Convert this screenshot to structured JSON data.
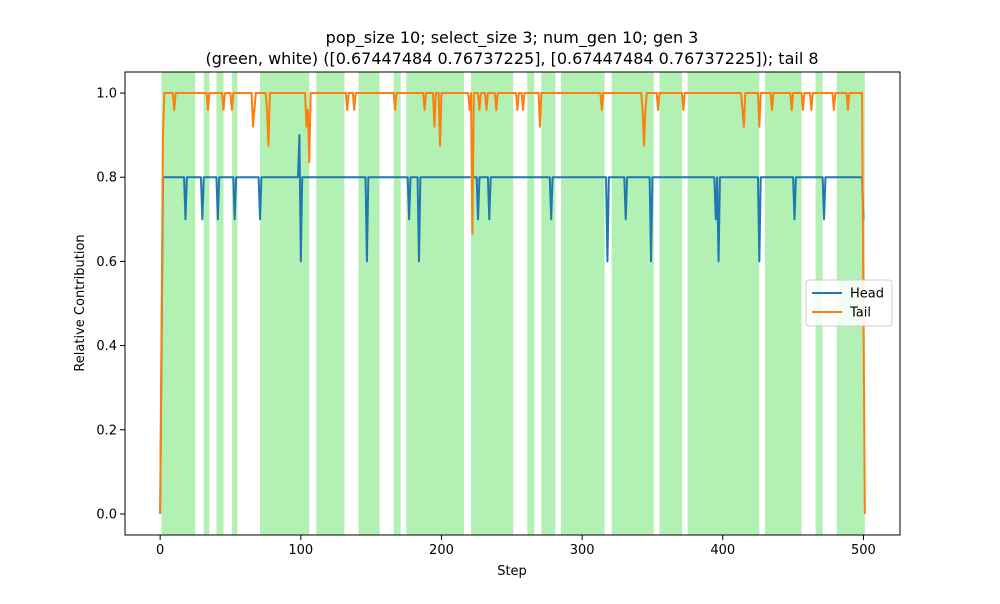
{
  "chart_data": {
    "type": "line",
    "title_line1": "pop_size 10; select_size 3; num_gen 10; gen 3",
    "title_line2": "(green, white) ([0.67447484 0.76737225], [0.67447484 0.76737225]); tail 8",
    "xlabel": "Step",
    "ylabel": "Relative Contribution",
    "xlim": [
      -25,
      526
    ],
    "ylim": [
      -0.05,
      1.05
    ],
    "xticks": [
      0,
      100,
      200,
      300,
      400,
      500
    ],
    "xtick_labels": [
      "0",
      "100",
      "200",
      "300",
      "400",
      "500"
    ],
    "yticks": [
      0.0,
      0.2,
      0.4,
      0.6,
      0.8,
      1.0
    ],
    "ytick_labels": [
      "0.0",
      "0.2",
      "0.4",
      "0.6",
      "0.8",
      "1.0"
    ],
    "grid": false,
    "legend_position": "center-right",
    "background_band_color": "#b3f0b3",
    "green_intervals": [
      [
        1,
        25
      ],
      [
        31,
        35
      ],
      [
        40,
        45
      ],
      [
        51,
        55
      ],
      [
        71,
        106
      ],
      [
        111,
        131
      ],
      [
        141,
        156
      ],
      [
        166,
        171
      ],
      [
        175,
        216
      ],
      [
        221,
        251
      ],
      [
        261,
        266
      ],
      [
        271,
        281
      ],
      [
        285,
        316
      ],
      [
        321,
        351
      ],
      [
        355,
        371
      ],
      [
        375,
        426
      ],
      [
        430,
        456
      ],
      [
        466,
        471
      ],
      [
        481,
        501
      ]
    ],
    "series": [
      {
        "name": "Head",
        "color": "#1f77b4",
        "points": [
          [
            0,
            0.0
          ],
          [
            2,
            0.8
          ],
          [
            17,
            0.8
          ],
          [
            18,
            0.7
          ],
          [
            19,
            0.8
          ],
          [
            29,
            0.8
          ],
          [
            30,
            0.7
          ],
          [
            31,
            0.8
          ],
          [
            40,
            0.8
          ],
          [
            41,
            0.7
          ],
          [
            42,
            0.8
          ],
          [
            52,
            0.8
          ],
          [
            53,
            0.7
          ],
          [
            54,
            0.8
          ],
          [
            70,
            0.8
          ],
          [
            71,
            0.7
          ],
          [
            72,
            0.8
          ],
          [
            98,
            0.8
          ],
          [
            99,
            0.9
          ],
          [
            100,
            0.6
          ],
          [
            101,
            0.8
          ],
          [
            146,
            0.8
          ],
          [
            147,
            0.6
          ],
          [
            148,
            0.8
          ],
          [
            176,
            0.8
          ],
          [
            177,
            0.7
          ],
          [
            178,
            0.8
          ],
          [
            183,
            0.8
          ],
          [
            184,
            0.6
          ],
          [
            185,
            0.8
          ],
          [
            225,
            0.8
          ],
          [
            226,
            0.7
          ],
          [
            227,
            0.8
          ],
          [
            233,
            0.8
          ],
          [
            234,
            0.7
          ],
          [
            235,
            0.8
          ],
          [
            277,
            0.8
          ],
          [
            278,
            0.7
          ],
          [
            279,
            0.8
          ],
          [
            317,
            0.8
          ],
          [
            318,
            0.6
          ],
          [
            319,
            0.8
          ],
          [
            330,
            0.8
          ],
          [
            331,
            0.7
          ],
          [
            332,
            0.8
          ],
          [
            348,
            0.8
          ],
          [
            349,
            0.6
          ],
          [
            350,
            0.8
          ],
          [
            394,
            0.8
          ],
          [
            395,
            0.7
          ],
          [
            396,
            0.8
          ],
          [
            397,
            0.6
          ],
          [
            398,
            0.8
          ],
          [
            425,
            0.8
          ],
          [
            426,
            0.6
          ],
          [
            427,
            0.8
          ],
          [
            450,
            0.8
          ],
          [
            451,
            0.7
          ],
          [
            452,
            0.8
          ],
          [
            471,
            0.8
          ],
          [
            472,
            0.7
          ],
          [
            473,
            0.8
          ],
          [
            499,
            0.8
          ],
          [
            500,
            0.7
          ]
        ]
      },
      {
        "name": "Tail",
        "color": "#ff7f0e",
        "points": [
          [
            0,
            0.0
          ],
          [
            2,
            0.9
          ],
          [
            3,
            1.0
          ],
          [
            9,
            1.0
          ],
          [
            10,
            0.96
          ],
          [
            11,
            1.0
          ],
          [
            33,
            1.0
          ],
          [
            34,
            0.96
          ],
          [
            35,
            1.0
          ],
          [
            44,
            1.0
          ],
          [
            45,
            0.96
          ],
          [
            46,
            1.0
          ],
          [
            50,
            1.0
          ],
          [
            51,
            0.96
          ],
          [
            52,
            1.0
          ],
          [
            65,
            1.0
          ],
          [
            66,
            0.92
          ],
          [
            67,
            0.96
          ],
          [
            68,
            1.0
          ],
          [
            75,
            1.0
          ],
          [
            76,
            0.96
          ],
          [
            77,
            0.875
          ],
          [
            78,
            1.0
          ],
          [
            103,
            1.0
          ],
          [
            104,
            0.92
          ],
          [
            105,
            0.96
          ],
          [
            106,
            0.835
          ],
          [
            107,
            1.0
          ],
          [
            132,
            1.0
          ],
          [
            133,
            0.96
          ],
          [
            134,
            1.0
          ],
          [
            137,
            1.0
          ],
          [
            138,
            0.96
          ],
          [
            139,
            1.0
          ],
          [
            166,
            1.0
          ],
          [
            167,
            0.96
          ],
          [
            168,
            1.0
          ],
          [
            187,
            1.0
          ],
          [
            188,
            0.96
          ],
          [
            189,
            1.0
          ],
          [
            194,
            1.0
          ],
          [
            195,
            0.92
          ],
          [
            196,
            1.0
          ],
          [
            198,
            1.0
          ],
          [
            199,
            0.875
          ],
          [
            200,
            1.0
          ],
          [
            219,
            1.0
          ],
          [
            220,
            0.96
          ],
          [
            221,
            1.0
          ],
          [
            222,
            0.665
          ],
          [
            223,
            1.0
          ],
          [
            226,
            1.0
          ],
          [
            227,
            0.96
          ],
          [
            228,
            1.0
          ],
          [
            231,
            1.0
          ],
          [
            232,
            0.96
          ],
          [
            233,
            1.0
          ],
          [
            238,
            1.0
          ],
          [
            239,
            0.96
          ],
          [
            240,
            1.0
          ],
          [
            253,
            1.0
          ],
          [
            254,
            0.96
          ],
          [
            255,
            1.0
          ],
          [
            257,
            1.0
          ],
          [
            258,
            0.96
          ],
          [
            259,
            1.0
          ],
          [
            269,
            1.0
          ],
          [
            270,
            0.92
          ],
          [
            271,
            1.0
          ],
          [
            313,
            1.0
          ],
          [
            314,
            0.96
          ],
          [
            315,
            1.0
          ],
          [
            342,
            1.0
          ],
          [
            343,
            0.96
          ],
          [
            344,
            0.875
          ],
          [
            345,
            0.96
          ],
          [
            346,
            1.0
          ],
          [
            353,
            1.0
          ],
          [
            354,
            0.96
          ],
          [
            355,
            1.0
          ],
          [
            371,
            1.0
          ],
          [
            372,
            0.96
          ],
          [
            373,
            1.0
          ],
          [
            413,
            1.0
          ],
          [
            414,
            0.96
          ],
          [
            415,
            0.92
          ],
          [
            416,
            1.0
          ],
          [
            425,
            1.0
          ],
          [
            426,
            0.92
          ],
          [
            427,
            1.0
          ],
          [
            434,
            1.0
          ],
          [
            435,
            0.96
          ],
          [
            436,
            1.0
          ],
          [
            448,
            1.0
          ],
          [
            449,
            0.96
          ],
          [
            450,
            1.0
          ],
          [
            456,
            1.0
          ],
          [
            457,
            0.96
          ],
          [
            458,
            1.0
          ],
          [
            462,
            1.0
          ],
          [
            463,
            0.96
          ],
          [
            464,
            1.0
          ],
          [
            478,
            1.0
          ],
          [
            479,
            0.96
          ],
          [
            480,
            1.0
          ],
          [
            488,
            1.0
          ],
          [
            489,
            0.96
          ],
          [
            490,
            1.0
          ],
          [
            499,
            1.0
          ],
          [
            501,
            0.0
          ]
        ]
      }
    ]
  }
}
